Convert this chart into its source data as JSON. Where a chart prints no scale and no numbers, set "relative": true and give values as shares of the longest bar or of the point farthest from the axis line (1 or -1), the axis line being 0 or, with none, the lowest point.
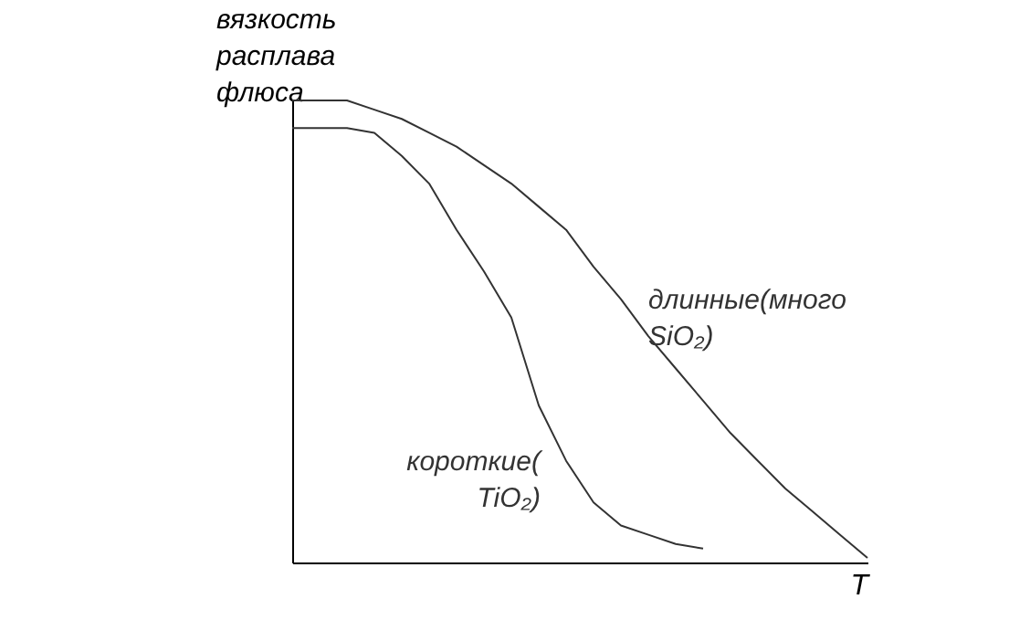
{
  "chart_data": {
    "type": "line",
    "relative": true,
    "ylabel": "вязкость расплава флюса",
    "xlabel": "T",
    "legend": false,
    "marker": "none",
    "categories": [
      null,
      null,
      null,
      null,
      null,
      null,
      null,
      null,
      null,
      null,
      null,
      null,
      null,
      null,
      null,
      null,
      null,
      null,
      null,
      null,
      null,
      null
    ],
    "series": [
      {
        "name": "длинные(много SiO₂)",
        "color": "#333333",
        "values": [
          1,
          1,
          1,
          0.98,
          0.96,
          0.93,
          0.9,
          0.86,
          0.82,
          0.77,
          0.72,
          0.64,
          0.57,
          0.49,
          0.42,
          0.35,
          0.28,
          0.22,
          0.16,
          0.11,
          0.06,
          0.01
        ]
      },
      {
        "name": "короткие(TiO₂)",
        "color": "#333333",
        "values": [
          0.94,
          0.94,
          0.94,
          0.93,
          0.88,
          0.82,
          0.72,
          0.63,
          0.53,
          0.34,
          0.22,
          0.13,
          0.08,
          0.06,
          0.04,
          0.03,
          null,
          null,
          null,
          null,
          null,
          null
        ]
      }
    ]
  }
}
